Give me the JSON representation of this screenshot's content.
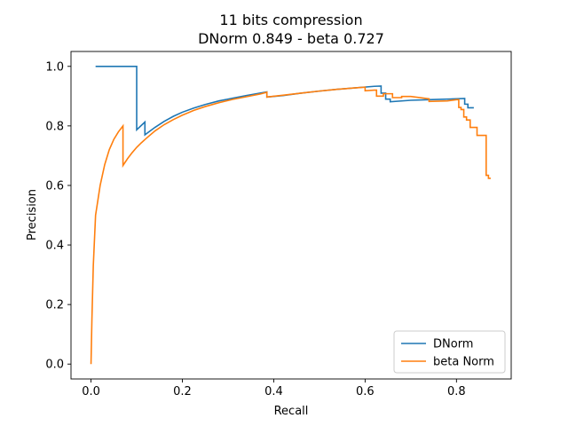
{
  "chart_data": {
    "type": "line",
    "title_line1": "11 bits compression",
    "title_line2": "DNorm 0.849 - beta 0.727",
    "xlabel": "Recall",
    "ylabel": "Precision",
    "xlim": [
      -0.0438,
      0.9198
    ],
    "ylim": [
      -0.05,
      1.05
    ],
    "xticks": [
      0.0,
      0.2,
      0.4,
      0.6,
      0.8
    ],
    "xtick_labels": [
      "0.0",
      "0.2",
      "0.4",
      "0.6",
      "0.8"
    ],
    "yticks": [
      0.0,
      0.2,
      0.4,
      0.6,
      0.8,
      1.0
    ],
    "ytick_labels": [
      "0.0",
      "0.2",
      "0.4",
      "0.6",
      "0.8",
      "1.0"
    ],
    "grid": false,
    "legend_position": "lower-right",
    "series": [
      {
        "name": "DNorm",
        "color": "#1f77b4",
        "x": [
          0.01,
          0.1,
          0.1,
          0.118,
          0.118,
          0.14,
          0.16,
          0.18,
          0.2,
          0.225,
          0.25,
          0.28,
          0.31,
          0.34,
          0.37,
          0.385,
          0.385,
          0.42,
          0.46,
          0.5,
          0.54,
          0.58,
          0.62,
          0.635,
          0.635,
          0.645,
          0.645,
          0.655,
          0.655,
          0.7,
          0.74,
          0.78,
          0.8,
          0.818,
          0.818,
          0.825,
          0.825,
          0.838
        ],
        "y": [
          1.0,
          1.0,
          0.787,
          0.813,
          0.77,
          0.795,
          0.815,
          0.832,
          0.846,
          0.86,
          0.872,
          0.884,
          0.893,
          0.902,
          0.91,
          0.914,
          0.897,
          0.902,
          0.91,
          0.917,
          0.923,
          0.928,
          0.933,
          0.934,
          0.91,
          0.91,
          0.89,
          0.89,
          0.881,
          0.886,
          0.888,
          0.89,
          0.891,
          0.892,
          0.873,
          0.873,
          0.861,
          0.861
        ]
      },
      {
        "name": "beta Norm",
        "color": "#ff7f0e",
        "x": [
          0.0,
          0.002,
          0.005,
          0.01,
          0.015,
          0.02,
          0.03,
          0.04,
          0.05,
          0.06,
          0.07,
          0.07,
          0.08,
          0.09,
          0.1,
          0.11,
          0.12,
          0.14,
          0.16,
          0.18,
          0.2,
          0.225,
          0.25,
          0.28,
          0.31,
          0.34,
          0.37,
          0.385,
          0.385,
          0.42,
          0.46,
          0.5,
          0.54,
          0.58,
          0.6,
          0.6,
          0.62,
          0.625,
          0.625,
          0.64,
          0.64,
          0.66,
          0.66,
          0.68,
          0.68,
          0.7,
          0.74,
          0.74,
          0.78,
          0.8,
          0.8,
          0.805,
          0.805,
          0.81,
          0.81,
          0.816,
          0.816,
          0.822,
          0.822,
          0.83,
          0.83,
          0.845,
          0.845,
          0.86,
          0.86,
          0.865,
          0.865,
          0.87,
          0.87,
          0.875
        ],
        "y": [
          0.0,
          0.15,
          0.33,
          0.5,
          0.55,
          0.6,
          0.67,
          0.72,
          0.755,
          0.78,
          0.8,
          0.667,
          0.69,
          0.71,
          0.728,
          0.743,
          0.757,
          0.783,
          0.804,
          0.821,
          0.836,
          0.852,
          0.865,
          0.878,
          0.889,
          0.898,
          0.907,
          0.913,
          0.897,
          0.903,
          0.91,
          0.917,
          0.923,
          0.928,
          0.93,
          0.918,
          0.92,
          0.92,
          0.9,
          0.9,
          0.908,
          0.908,
          0.895,
          0.895,
          0.899,
          0.899,
          0.891,
          0.882,
          0.884,
          0.888,
          0.888,
          0.888,
          0.862,
          0.862,
          0.855,
          0.855,
          0.83,
          0.83,
          0.82,
          0.82,
          0.795,
          0.795,
          0.768,
          0.768,
          0.768,
          0.768,
          0.634,
          0.634,
          0.624,
          0.624
        ]
      }
    ]
  }
}
